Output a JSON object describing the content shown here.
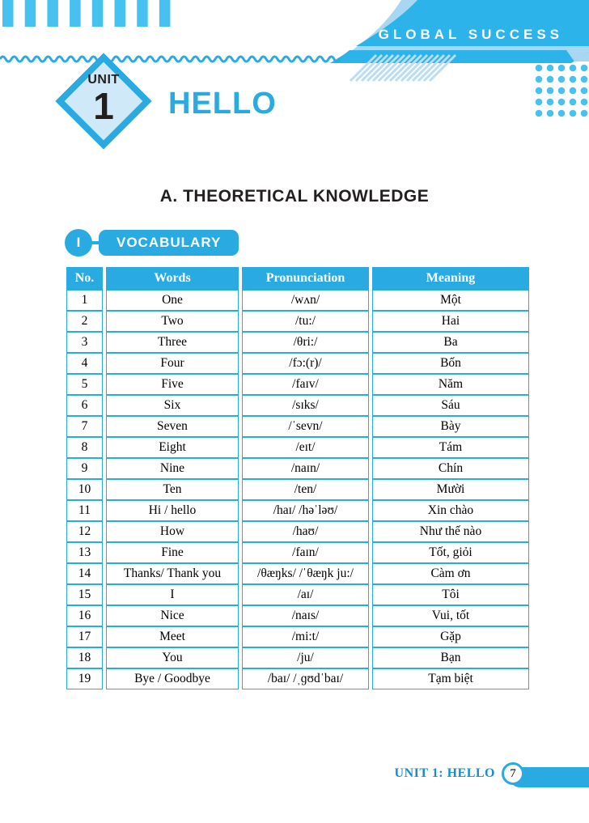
{
  "brand": {
    "name": "GLOBAL SUCCESS"
  },
  "unit_badge": {
    "label": "UNIT",
    "number": "1"
  },
  "page": {
    "title": "HELLO",
    "section_heading": "A. THEORETICAL KNOWLEDGE"
  },
  "vocabulary_section": {
    "index": "I",
    "title": "VOCABULARY"
  },
  "table": {
    "headers": [
      "No.",
      "Words",
      "Pronunciation",
      "Meaning"
    ],
    "rows": [
      [
        "1",
        "One",
        "/wʌn/",
        "Một"
      ],
      [
        "2",
        "Two",
        "/tu:/",
        "Hai"
      ],
      [
        "3",
        "Three",
        "/θri:/",
        "Ba"
      ],
      [
        "4",
        "Four",
        "/fɔ:(r)/",
        "Bốn"
      ],
      [
        "5",
        "Five",
        "/faɪv/",
        "Năm"
      ],
      [
        "6",
        "Six",
        "/sɪks/",
        "Sáu"
      ],
      [
        "7",
        "Seven",
        "/ˈsevn/",
        "Bày"
      ],
      [
        "8",
        "Eight",
        "/eɪt/",
        "Tám"
      ],
      [
        "9",
        "Nine",
        "/naɪn/",
        "Chín"
      ],
      [
        "10",
        "Ten",
        "/ten/",
        "Mười"
      ],
      [
        "11",
        "Hi / hello",
        "/haɪ/ /həˈləʊ/",
        "Xin chào"
      ],
      [
        "12",
        "How",
        "/haʊ/",
        "Như thế nào"
      ],
      [
        "13",
        "Fine",
        "/faɪn/",
        "Tốt, giỏi"
      ],
      [
        "14",
        "Thanks/ Thank you",
        "/θæŋks/ /ˈθæŋk ju:/",
        "Càm ơn"
      ],
      [
        "15",
        "I",
        "/aɪ/",
        "Tôi"
      ],
      [
        "16",
        "Nice",
        "/naɪs/",
        "Vui, tốt"
      ],
      [
        "17",
        "Meet",
        "/mi:t/",
        "Gặp"
      ],
      [
        "18",
        "You",
        "/ju/",
        "Bạn"
      ],
      [
        "19",
        "Bye / Goodbye",
        "/baɪ/ /ˌɡʊdˈbaɪ/",
        "Tạm biệt"
      ]
    ]
  },
  "footer": {
    "label": "UNIT 1: HELLO",
    "page_number": "7"
  },
  "colors": {
    "cyan": "#29abe2",
    "banner_cyan": "#2bb3ea",
    "light_blue": "#a9d7f1",
    "pale_blue": "#cfe9f8",
    "stripe_blue": "#47c2f0",
    "hatch_blue": "#b9ddf3",
    "text_black": "#231f20",
    "footer_blue": "#1590cf"
  }
}
